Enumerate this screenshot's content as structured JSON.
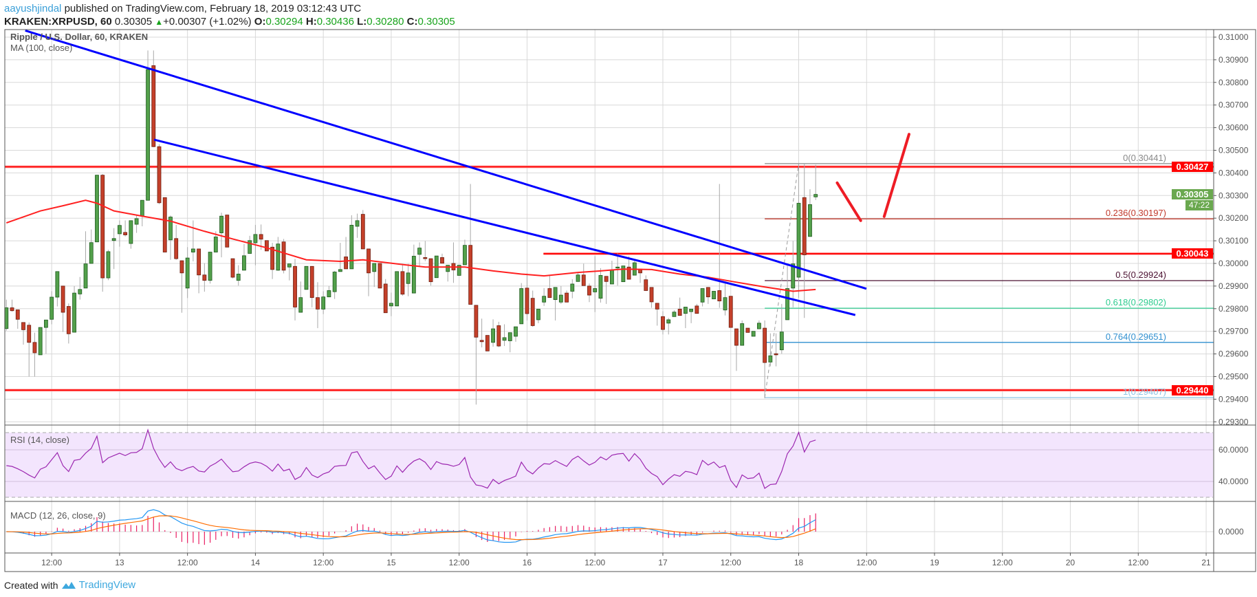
{
  "header": {
    "author": "aayushjindal",
    "published_text": "published on TradingView.com, February 18, 2019 03:12:43 UTC",
    "symbol": "KRAKEN:XRPUSD, 60",
    "last_price": "0.30305",
    "change": "+0.00307 (+1.02%)",
    "o_label": "O:",
    "o_value": "0.30294",
    "h_label": "H:",
    "h_value": "0.30436",
    "l_label": "L:",
    "l_value": "0.30280",
    "c_label": "C:",
    "c_value": "0.30305",
    "up_arrow": "▲",
    "colors": {
      "author": "#3a9fd8",
      "up": "#17a31b"
    }
  },
  "legend": {
    "title": "Ripple / U.S. Dollar, 60, KRAKEN",
    "ma": "MA (100, close)",
    "rsi": "RSI (14, close)",
    "macd": "MACD (12, 26, close, 9)"
  },
  "price_tags": [
    {
      "value": "0.30427",
      "kind": "red"
    },
    {
      "value": "0.30305",
      "kind": "green"
    },
    {
      "value": "0.30043",
      "kind": "red"
    },
    {
      "value": "0.29440",
      "kind": "red"
    }
  ],
  "countdown": "47:22",
  "footer": {
    "created_with": "Created with",
    "brand": "TradingView"
  },
  "chart_data": {
    "type": "candlestick",
    "title": "Ripple / U.S. Dollar, 60, KRAKEN",
    "interval": "60",
    "x_start": "2019-02-12 04:00",
    "ylim": [
      0.292857,
      0.310334
    ],
    "grid": true,
    "colors": {
      "up": "#53a04b",
      "down": "#c4402a",
      "ma": "#ff2020",
      "trendline": "#0000ff",
      "level": "#ff0000",
      "rsi": "#9c27b0",
      "macd": "#2196f3",
      "signal": "#ff6d00",
      "histogram": "#e91e63"
    },
    "price_ticks": [
      "0.31000",
      "0.30900",
      "0.30800",
      "0.30700",
      "0.30600",
      "0.30500",
      "0.30400",
      "0.30300",
      "0.30200",
      "0.30100",
      "0.30000",
      "0.29900",
      "0.29800",
      "0.29700",
      "0.29600",
      "0.29500",
      "0.29400",
      "0.29300"
    ],
    "rsi_ticks": [
      "60.0000",
      "40.0000"
    ],
    "macd_ticks": [
      "0.0000"
    ],
    "time_ticks": [
      {
        "label": "12:00",
        "time": "2019-02-12 12:00"
      },
      {
        "label": "13",
        "time": "2019-02-13 00:00"
      },
      {
        "label": "12:00",
        "time": "2019-02-13 12:00"
      },
      {
        "label": "14",
        "time": "2019-02-14 00:00"
      },
      {
        "label": "12:00",
        "time": "2019-02-14 12:00"
      },
      {
        "label": "15",
        "time": "2019-02-15 00:00"
      },
      {
        "label": "12:00",
        "time": "2019-02-15 12:00"
      },
      {
        "label": "16",
        "time": "2019-02-16 00:00"
      },
      {
        "label": "12:00",
        "time": "2019-02-16 12:00"
      },
      {
        "label": "17",
        "time": "2019-02-17 00:00"
      },
      {
        "label": "12:00",
        "time": "2019-02-17 12:00"
      },
      {
        "label": "18",
        "time": "2019-02-18 00:00"
      },
      {
        "label": "12:00",
        "time": "2019-02-18 12:00"
      },
      {
        "label": "19",
        "time": "2019-02-19 00:00"
      },
      {
        "label": "12:00",
        "time": "2019-02-19 12:00"
      },
      {
        "label": "20",
        "time": "2019-02-20 00:00"
      },
      {
        "label": "12:00",
        "time": "2019-02-20 12:00"
      },
      {
        "label": "21",
        "time": "2019-02-21 00:00"
      }
    ],
    "ohlc": [
      [
        0.29712,
        0.2984,
        0.29703,
        0.29804
      ],
      [
        0.29804,
        0.2984,
        0.29787,
        0.29791
      ],
      [
        0.29795,
        0.29795,
        0.29711,
        0.29753
      ],
      [
        0.29739,
        0.29739,
        0.29641,
        0.29707
      ],
      [
        0.29727,
        0.29739,
        0.295,
        0.29651
      ],
      [
        0.29651,
        0.29694,
        0.295,
        0.29605
      ],
      [
        0.29596,
        0.29717,
        0.29596,
        0.29717
      ],
      [
        0.29717,
        0.2975,
        0.29601,
        0.2975
      ],
      [
        0.29753,
        0.29877,
        0.29731,
        0.29851
      ],
      [
        0.29851,
        0.29964,
        0.2981,
        0.29964
      ],
      [
        0.299,
        0.299,
        0.29697,
        0.29784
      ],
      [
        0.2981,
        0.29823,
        0.29646,
        0.29689
      ],
      [
        0.29696,
        0.299,
        0.29696,
        0.29869
      ],
      [
        0.29865,
        0.2994,
        0.2984,
        0.29885
      ],
      [
        0.29891,
        0.30142,
        0.29891,
        0.29998
      ],
      [
        0.3,
        0.3015,
        0.3,
        0.30092
      ],
      [
        0.30095,
        0.30392,
        0.30095,
        0.3039
      ],
      [
        0.3039,
        0.30395,
        0.29875,
        0.29936
      ],
      [
        0.29936,
        0.3006,
        0.29926,
        0.30052
      ],
      [
        0.30101,
        0.30156,
        0.29975,
        0.3011
      ],
      [
        0.30131,
        0.3019,
        0.30074,
        0.30168
      ],
      [
        0.30137,
        0.3019,
        0.30119,
        0.30126
      ],
      [
        0.30088,
        0.30189,
        0.30065,
        0.30189
      ],
      [
        0.30173,
        0.30215,
        0.30135,
        0.30198
      ],
      [
        0.30209,
        0.30279,
        0.30164,
        0.30279
      ],
      [
        0.30279,
        0.30941,
        0.30279,
        0.30857
      ],
      [
        0.30874,
        0.30941,
        0.30514,
        0.30516
      ],
      [
        0.30516,
        0.30527,
        0.30262,
        0.30268
      ],
      [
        0.30291,
        0.30291,
        0.3005,
        0.3005
      ],
      [
        0.30104,
        0.30212,
        0.30016,
        0.30205
      ],
      [
        0.3011,
        0.3017,
        0.30016,
        0.30021
      ],
      [
        0.30012,
        0.30012,
        0.29782,
        0.29958
      ],
      [
        0.29891,
        0.30072,
        0.29847,
        0.30024
      ],
      [
        0.3005,
        0.3019,
        0.30009,
        0.30064
      ],
      [
        0.30064,
        0.30064,
        0.29868,
        0.29949
      ],
      [
        0.29949,
        0.30001,
        0.29875,
        0.29925
      ],
      [
        0.29925,
        0.3005,
        0.29911,
        0.3005
      ],
      [
        0.3005,
        0.30142,
        0.3005,
        0.30117
      ],
      [
        0.30135,
        0.30224,
        0.30027,
        0.30209
      ],
      [
        0.30214,
        0.30214,
        0.30072,
        0.30072
      ],
      [
        0.30021,
        0.30021,
        0.29934,
        0.29939
      ],
      [
        0.29925,
        0.29992,
        0.29902,
        0.29953
      ],
      [
        0.2997,
        0.30086,
        0.2997,
        0.30034
      ],
      [
        0.30044,
        0.30122,
        0.30044,
        0.30101
      ],
      [
        0.30091,
        0.3017,
        0.29992,
        0.30128
      ],
      [
        0.30128,
        0.30172,
        0.3006,
        0.30107
      ],
      [
        0.30101,
        0.30101,
        0.30055,
        0.30055
      ],
      [
        0.30072,
        0.30091,
        0.29931,
        0.29973
      ],
      [
        0.2997,
        0.30117,
        0.29967,
        0.30086
      ],
      [
        0.30095,
        0.30108,
        0.29956,
        0.2997
      ],
      [
        0.29984,
        0.29998,
        0.29925,
        0.29998
      ],
      [
        0.29987,
        0.3002,
        0.29748,
        0.29807
      ],
      [
        0.29784,
        0.2992,
        0.29784,
        0.29849
      ],
      [
        0.29885,
        0.29987,
        0.29885,
        0.29987
      ],
      [
        0.29987,
        0.29987,
        0.29806,
        0.29849
      ],
      [
        0.29849,
        0.29917,
        0.29714,
        0.29798
      ],
      [
        0.29798,
        0.29877,
        0.29776,
        0.29852
      ],
      [
        0.29852,
        0.299,
        0.29852,
        0.2988
      ],
      [
        0.29875,
        0.29967,
        0.29843,
        0.29962
      ],
      [
        0.29964,
        0.30091,
        0.29964,
        0.29973
      ],
      [
        0.30029,
        0.30117,
        0.29976,
        0.29976
      ],
      [
        0.29976,
        0.30213,
        0.29976,
        0.30169
      ],
      [
        0.30164,
        0.3022,
        0.30113,
        0.30189
      ],
      [
        0.30217,
        0.30236,
        0.30064,
        0.30064
      ],
      [
        0.30064,
        0.30064,
        0.29855,
        0.29958
      ],
      [
        0.29964,
        0.3,
        0.29896,
        0.3
      ],
      [
        0.3,
        0.3,
        0.29891,
        0.29891
      ],
      [
        0.29909,
        0.29931,
        0.29782,
        0.29782
      ],
      [
        0.29812,
        0.29871,
        0.29767,
        0.29824
      ],
      [
        0.29812,
        0.29964,
        0.29812,
        0.29964
      ],
      [
        0.29964,
        0.29998,
        0.29857,
        0.29864
      ],
      [
        0.29911,
        0.29998,
        0.29855,
        0.29958
      ],
      [
        0.29869,
        0.30083,
        0.29869,
        0.30032
      ],
      [
        0.3004,
        0.30093,
        0.29984,
        0.30068
      ],
      [
        0.30026,
        0.30099,
        0.3001,
        0.30021
      ],
      [
        0.30021,
        0.30021,
        0.29902,
        0.29919
      ],
      [
        0.29937,
        0.30033,
        0.29937,
        0.30033
      ],
      [
        0.30026,
        0.30043,
        0.30001,
        0.30001
      ],
      [
        0.29964,
        0.29992,
        0.2992,
        0.29992
      ],
      [
        0.3,
        0.30093,
        0.29914,
        0.29971
      ],
      [
        0.29947,
        0.29992,
        0.29947,
        0.29992
      ],
      [
        0.29994,
        0.30105,
        0.29994,
        0.3008
      ],
      [
        0.3008,
        0.30351,
        0.29819,
        0.29819
      ],
      [
        0.29815,
        0.29815,
        0.29376,
        0.29674
      ],
      [
        0.2966,
        0.29756,
        0.29629,
        0.29654
      ],
      [
        0.29682,
        0.29682,
        0.29613,
        0.29613
      ],
      [
        0.29651,
        0.29753,
        0.29632,
        0.29711
      ],
      [
        0.29725,
        0.29742,
        0.2963,
        0.29635
      ],
      [
        0.2966,
        0.29731,
        0.29635,
        0.29672
      ],
      [
        0.29658,
        0.29694,
        0.29607,
        0.29694
      ],
      [
        0.29678,
        0.2972,
        0.29654,
        0.2972
      ],
      [
        0.29733,
        0.29913,
        0.29733,
        0.29889
      ],
      [
        0.29891,
        0.29956,
        0.29748,
        0.29778
      ],
      [
        0.29846,
        0.2988,
        0.2972,
        0.29725
      ],
      [
        0.29751,
        0.29798,
        0.29736,
        0.29798
      ],
      [
        0.29829,
        0.29891,
        0.29812,
        0.29855
      ],
      [
        0.29889,
        0.2995,
        0.29849,
        0.29849
      ],
      [
        0.2984,
        0.29894,
        0.29748,
        0.29894
      ],
      [
        0.29829,
        0.299,
        0.29821,
        0.2986
      ],
      [
        0.29869,
        0.2988,
        0.29829,
        0.29829
      ],
      [
        0.29877,
        0.2993,
        0.29846,
        0.29909
      ],
      [
        0.2992,
        0.29962,
        0.2992,
        0.29949
      ],
      [
        0.29949,
        0.29999,
        0.29902,
        0.29902
      ],
      [
        0.299,
        0.29911,
        0.29829,
        0.2986
      ],
      [
        0.29874,
        0.30032,
        0.29785,
        0.29889
      ],
      [
        0.29846,
        0.29979,
        0.29827,
        0.29947
      ],
      [
        0.29943,
        0.29943,
        0.29821,
        0.2992
      ],
      [
        0.29909,
        0.30012,
        0.29909,
        0.29971
      ],
      [
        0.29981,
        0.30044,
        0.29902,
        0.29984
      ],
      [
        0.29919,
        0.29989,
        0.29919,
        0.29989
      ],
      [
        0.29984,
        0.30032,
        0.2993,
        0.2993
      ],
      [
        0.29948,
        0.30017,
        0.29948,
        0.30003
      ],
      [
        0.29975,
        0.29975,
        0.29914,
        0.29958
      ],
      [
        0.29928,
        0.29947,
        0.2988,
        0.2988
      ],
      [
        0.29894,
        0.29894,
        0.29804,
        0.2983
      ],
      [
        0.29824,
        0.29824,
        0.29725,
        0.29798
      ],
      [
        0.29765,
        0.29789,
        0.29686,
        0.29708
      ],
      [
        0.29736,
        0.29759,
        0.29686,
        0.29751
      ],
      [
        0.29765,
        0.29793,
        0.29765,
        0.29785
      ],
      [
        0.29798,
        0.29849,
        0.2977,
        0.2977
      ],
      [
        0.29779,
        0.29807,
        0.29714,
        0.29807
      ],
      [
        0.29787,
        0.29798,
        0.29736,
        0.29798
      ],
      [
        0.29812,
        0.29821,
        0.29779,
        0.29779
      ],
      [
        0.29829,
        0.29889,
        0.2981,
        0.29889
      ],
      [
        0.29894,
        0.29894,
        0.29821,
        0.29852
      ],
      [
        0.29843,
        0.29877,
        0.29843,
        0.29877
      ],
      [
        0.2988,
        0.30351,
        0.29804,
        0.29834
      ],
      [
        0.29794,
        0.29911,
        0.2977,
        0.29849
      ],
      [
        0.29855,
        0.29855,
        0.29717,
        0.29717
      ],
      [
        0.29711,
        0.29711,
        0.29525,
        0.29638
      ],
      [
        0.29638,
        0.29748,
        0.29638,
        0.29734
      ],
      [
        0.29714,
        0.29714,
        0.29695,
        0.29695
      ],
      [
        0.29678,
        0.297,
        0.29678,
        0.297
      ],
      [
        0.29711,
        0.29748,
        0.29711,
        0.29736
      ],
      [
        0.29714,
        0.29748,
        0.29404,
        0.29562
      ],
      [
        0.29564,
        0.29691,
        0.29545,
        0.29592
      ],
      [
        0.29601,
        0.29691,
        0.29545,
        0.29596
      ],
      [
        0.29618,
        0.29821,
        0.29601,
        0.29697
      ],
      [
        0.29751,
        0.29999,
        0.29751,
        0.29889
      ],
      [
        0.29891,
        0.30099,
        0.29806,
        0.29998
      ],
      [
        0.29939,
        0.30441,
        0.29847,
        0.30266
      ],
      [
        0.30291,
        0.30441,
        0.29759,
        0.30038
      ],
      [
        0.30119,
        0.30328,
        0.30119,
        0.3026
      ],
      [
        0.30294,
        0.30436,
        0.3028,
        0.30305
      ]
    ],
    "ma100": [
      {
        "time": "2019-02-12 04:00",
        "value": 0.30179
      },
      {
        "time": "2019-02-12 10:00",
        "value": 0.30232
      },
      {
        "time": "2019-02-12 14:00",
        "value": 0.30255
      },
      {
        "time": "2019-02-12 18:00",
        "value": 0.30279
      },
      {
        "time": "2019-02-12 20:00",
        "value": 0.30266
      },
      {
        "time": "2019-02-12 23:00",
        "value": 0.30232
      },
      {
        "time": "2019-02-13 04:00",
        "value": 0.30209
      },
      {
        "time": "2019-02-13 09:00",
        "value": 0.30187
      },
      {
        "time": "2019-02-13 15:00",
        "value": 0.30142
      },
      {
        "time": "2019-02-13 20:00",
        "value": 0.30108
      },
      {
        "time": "2019-02-14 02:00",
        "value": 0.30069
      },
      {
        "time": "2019-02-14 09:00",
        "value": 0.30016
      },
      {
        "time": "2019-02-14 15:00",
        "value": 0.30009
      },
      {
        "time": "2019-02-14 19:00",
        "value": 0.30016
      },
      {
        "time": "2019-02-15 02:00",
        "value": 0.29995
      },
      {
        "time": "2019-02-15 06:00",
        "value": 0.29984
      },
      {
        "time": "2019-02-15 13:00",
        "value": 0.29984
      },
      {
        "time": "2019-02-15 18:00",
        "value": 0.29967
      },
      {
        "time": "2019-02-15 23:00",
        "value": 0.29953
      },
      {
        "time": "2019-02-16 03:00",
        "value": 0.29945
      },
      {
        "time": "2019-02-16 09:00",
        "value": 0.2996
      },
      {
        "time": "2019-02-16 13:00",
        "value": 0.29967
      },
      {
        "time": "2019-02-16 17:00",
        "value": 0.29975
      },
      {
        "time": "2019-02-16 22:00",
        "value": 0.29973
      },
      {
        "time": "2019-02-17 03:00",
        "value": 0.29953
      },
      {
        "time": "2019-02-17 08:00",
        "value": 0.29939
      },
      {
        "time": "2019-02-17 13:00",
        "value": 0.29917
      },
      {
        "time": "2019-02-17 18:00",
        "value": 0.29896
      },
      {
        "time": "2019-02-17 23:00",
        "value": 0.29877
      },
      {
        "time": "2019-02-18 03:00",
        "value": 0.29885
      }
    ],
    "horizontal_levels": [
      {
        "value": 0.30427,
        "full_width": true
      },
      {
        "value": 0.30043,
        "full_width": false
      },
      {
        "value": 0.2944,
        "full_width": true
      }
    ],
    "fibonacci": {
      "from": {
        "time": "2019-02-17 18:00",
        "value": 0.29407
      },
      "to": {
        "time": "2019-02-18 00:00",
        "value": 0.30441
      },
      "levels": [
        {
          "ratio": 0,
          "value": 0.30441,
          "label": "0(0.30441)",
          "color": "#888888"
        },
        {
          "ratio": 0.236,
          "value": 0.30197,
          "label": "0.236(0.30197)",
          "color": "#c0392b"
        },
        {
          "ratio": 0.5,
          "value": 0.29924,
          "label": "0.5(0.29924)",
          "color": "#4a1030"
        },
        {
          "ratio": 0.618,
          "value": 0.29802,
          "label": "0.618(0.29802)",
          "color": "#2ecc8f"
        },
        {
          "ratio": 0.764,
          "value": 0.29651,
          "label": "0.764(0.29651)",
          "color": "#2f8fcf"
        },
        {
          "ratio": 1,
          "value": 0.29407,
          "label": "1(0.29407)",
          "color": "#8cc4e6"
        }
      ]
    }
  }
}
